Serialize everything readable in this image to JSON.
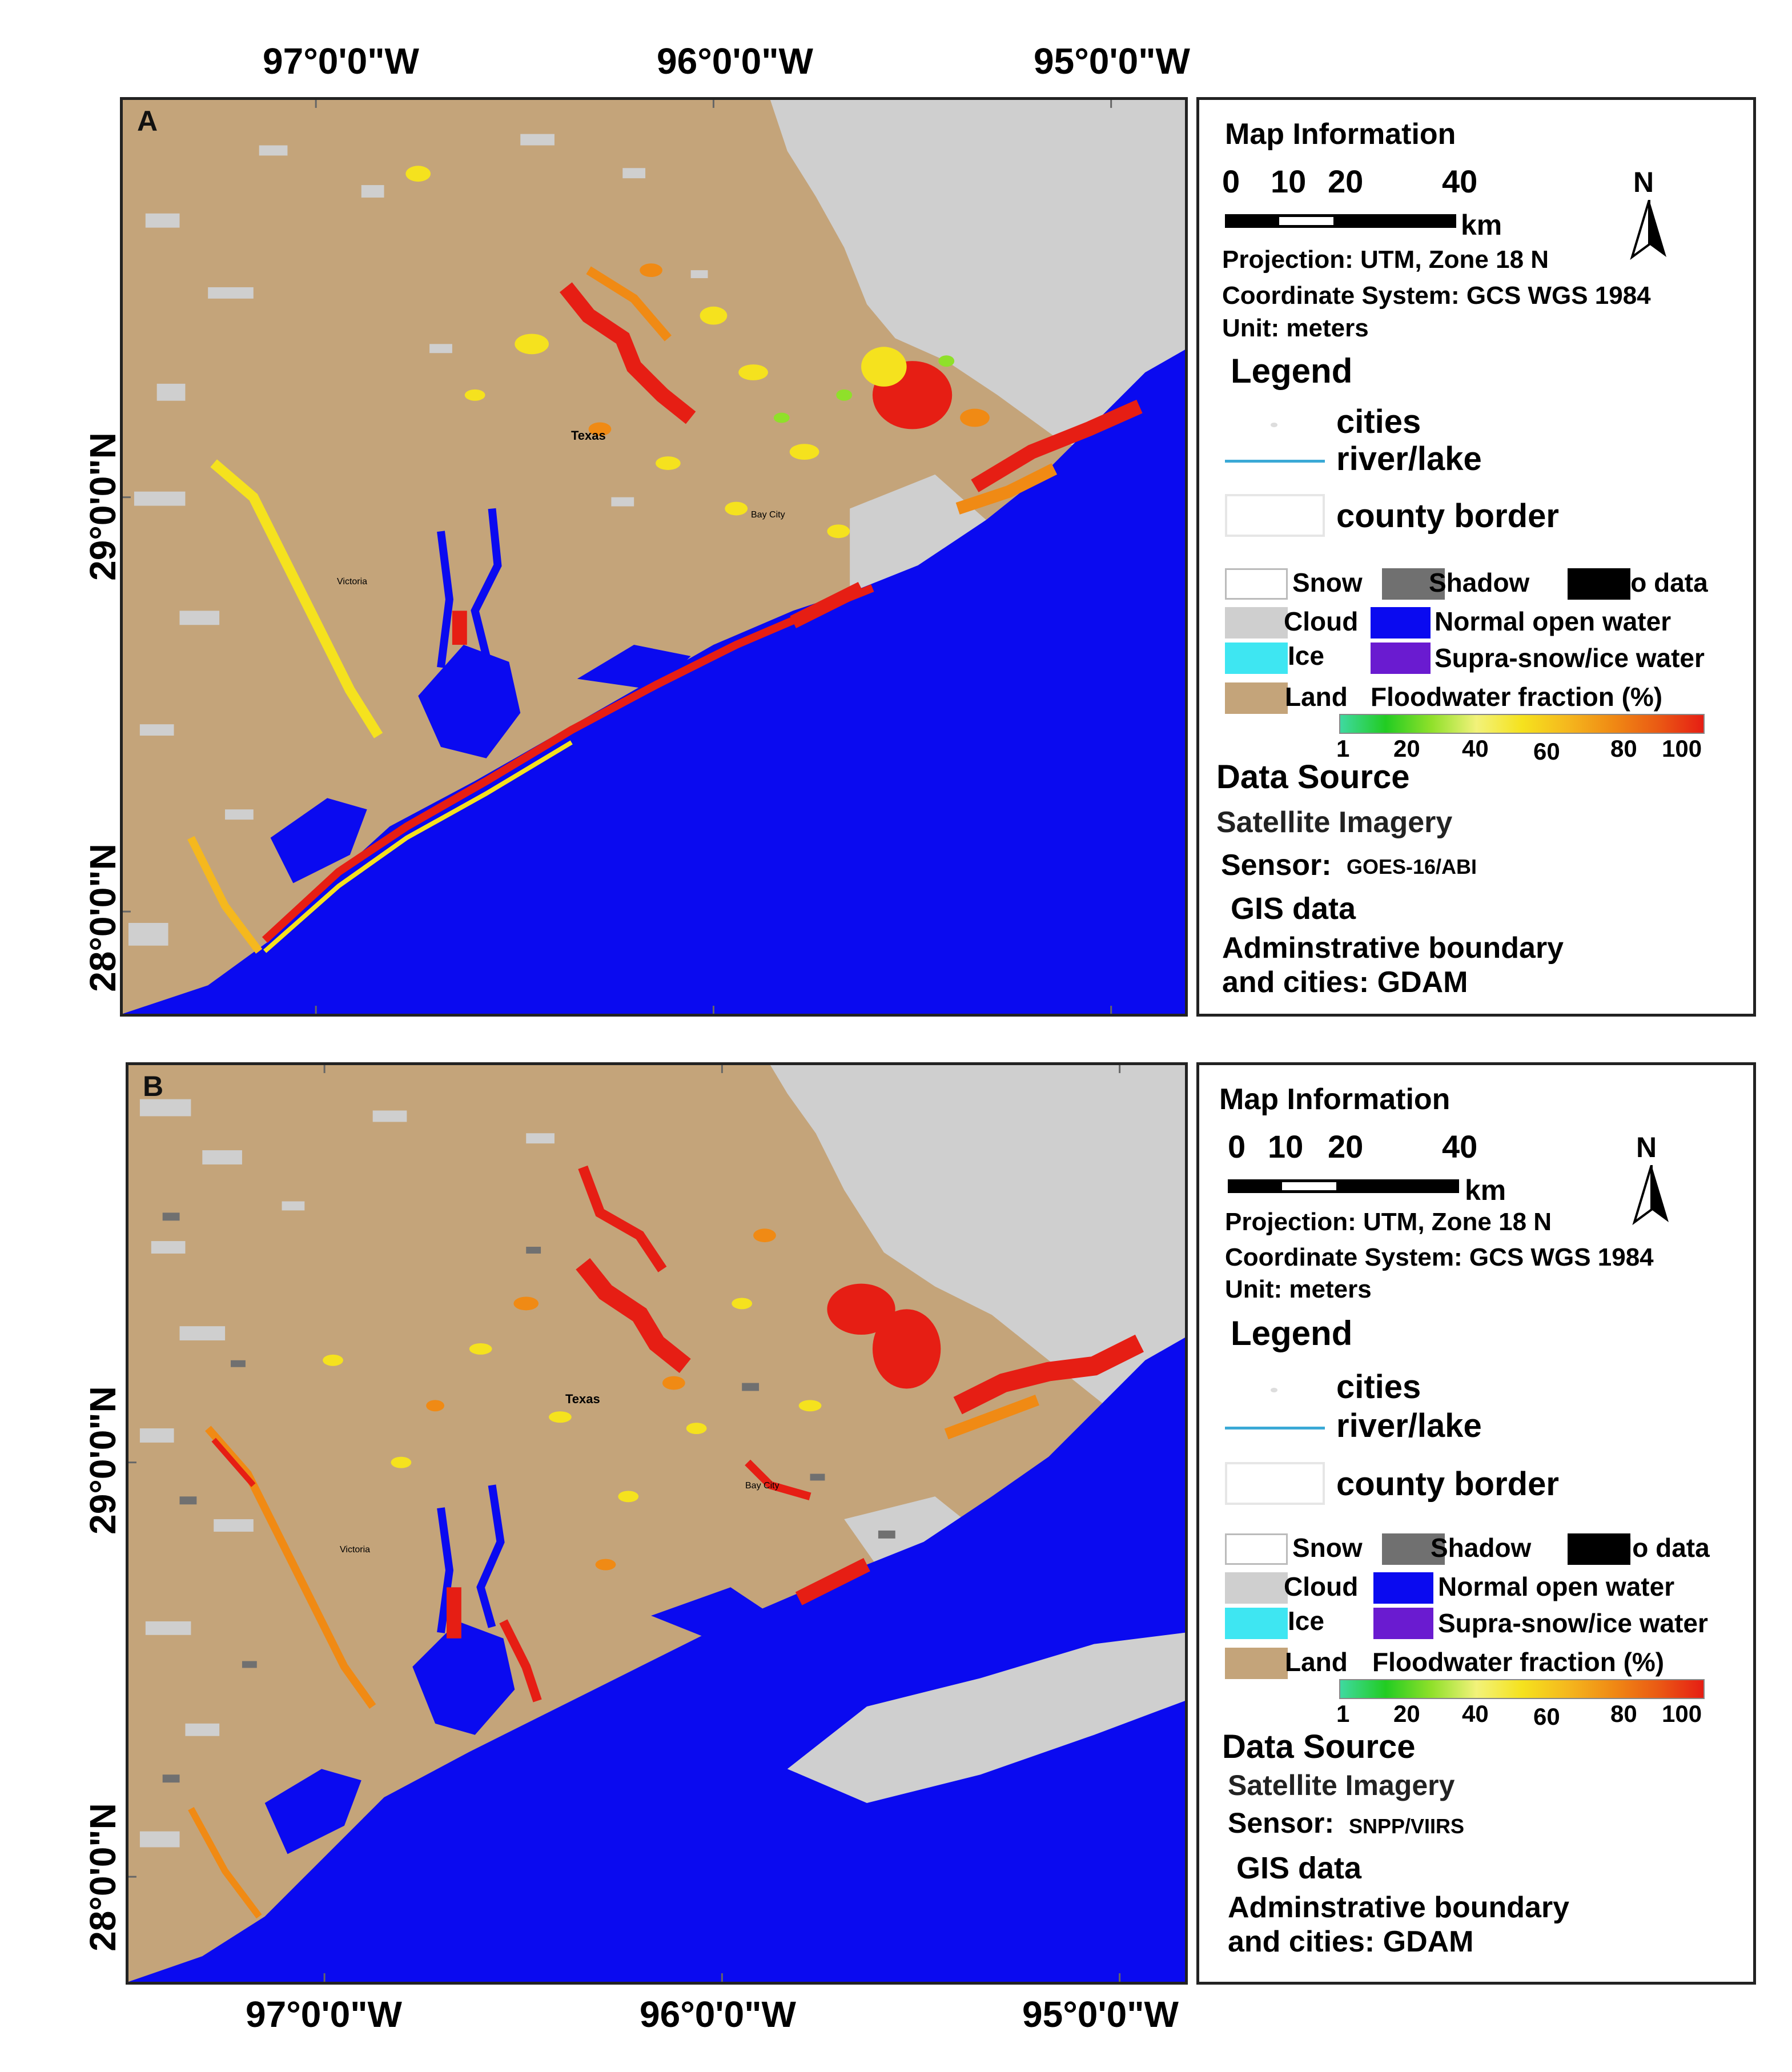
{
  "coords": {
    "top_lon": [
      "97°0'0\"W",
      "96°0'0\"W",
      "95°0'0\"W"
    ],
    "bottom_lon": [
      "97°0'0\"W",
      "96°0'0\"W",
      "95°0'0\"W"
    ],
    "lat": [
      "29°0'0\"N",
      "28°0'0\"N"
    ]
  },
  "panels": [
    {
      "label": "A",
      "map_text": {
        "state": "Texas",
        "city_bay": "Bay City",
        "city_victoria": "Victoria"
      },
      "info": {
        "title": "Map Information",
        "scale_numbers": [
          "0",
          "10",
          "20",
          "40"
        ],
        "scale_unit": "km",
        "north": "N",
        "projection": "Projection: UTM, Zone 18 N",
        "coordinate_system": "Coordinate System: GCS WGS 1984",
        "unit": "Unit: meters",
        "legend_title": "Legend",
        "legend_cities": "cities",
        "legend_river": "river/lake",
        "legend_county": "county border",
        "classes": {
          "snow": "Snow",
          "shadow": "Shadow",
          "nodata": "No data",
          "cloud": "Cloud",
          "water": "Normal open water",
          "ice": "Ice",
          "supra": "Supra-snow/ice water",
          "land": "Land",
          "flood": "Floodwater fraction (%)"
        },
        "ramp_ticks": [
          "1",
          "20",
          "40",
          "60",
          "80",
          "100"
        ],
        "data_source_title": "Data Source",
        "imagery": "Satellite Imagery",
        "sensor_label": "Sensor:",
        "sensor_value": "GOES-16/ABI",
        "gis_title": "GIS data",
        "admin_line1": "Adminstrative boundary",
        "admin_line2": "and cities:  GDAM"
      }
    },
    {
      "label": "B",
      "map_text": {
        "state": "Texas",
        "city_bay": "Bay City",
        "city_victoria": "Victoria"
      },
      "info": {
        "title": "Map Information",
        "scale_numbers": [
          "0",
          "10",
          "20",
          "40"
        ],
        "scale_unit": "km",
        "north": "N",
        "projection": "Projection: UTM, Zone 18 N",
        "coordinate_system": "Coordinate System: GCS WGS 1984",
        "unit": "Unit: meters",
        "legend_title": "Legend",
        "legend_cities": "cities",
        "legend_river": "river/lake",
        "legend_county": "county border",
        "classes": {
          "snow": "Snow",
          "shadow": "Shadow",
          "nodata": "No data",
          "cloud": "Cloud",
          "water": "Normal open water",
          "ice": "Ice",
          "supra": "Supra-snow/ice water",
          "land": "Land",
          "flood": "Floodwater fraction (%)"
        },
        "ramp_ticks": [
          "1",
          "20",
          "40",
          "60",
          "80",
          "100"
        ],
        "data_source_title": "Data Source",
        "imagery": "Satellite Imagery",
        "sensor_label": "Sensor:",
        "sensor_value": "SNPP/VIIRS",
        "gis_title": "GIS data",
        "admin_line1": "Adminstrative boundary",
        "admin_line2": "and cities:  GDAM"
      }
    }
  ],
  "colors": {
    "land": "#c4a47a",
    "water": "#0a0af0",
    "cloud": "#cfcfcf",
    "shadow": "#707070",
    "nodata": "#000000",
    "ice": "#3ee6f2",
    "supra": "#6a1bd0",
    "snow": "#ffffff",
    "flood_ramp": [
      "#3fd9a0",
      "#22cc22",
      "#8fe02a",
      "#f2f27a",
      "#f5e21e",
      "#f5b81e",
      "#f08a14",
      "#ea5a14",
      "#e61e14"
    ]
  }
}
